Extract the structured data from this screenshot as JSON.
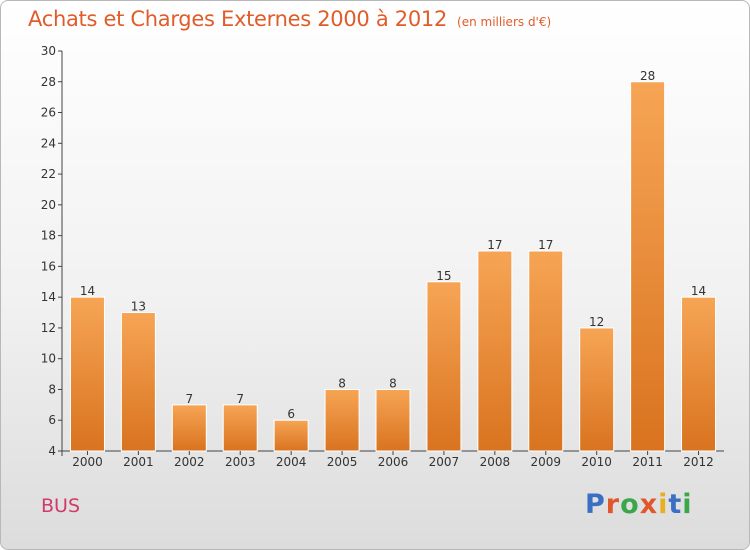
{
  "header": {
    "title": "Achats et Charges Externes 2000 à 2012",
    "subtitle": "(en milliers d'€)"
  },
  "footer": {
    "commune": "BUS",
    "logo": "Proxiti",
    "logo_colors": [
      "#3a6fc4",
      "#e0572b",
      "#3aa84a",
      "#e0572b",
      "#e8b020",
      "#3a6fc4",
      "#3aa84a"
    ]
  },
  "colors": {
    "bar_top": "#f6a555",
    "bar_bottom": "#d9731f",
    "title": "#e05c2a",
    "commune": "#d13a6a"
  },
  "chart_data": {
    "type": "bar",
    "title": "Achats et Charges Externes 2000 à 2012",
    "subtitle": "(en milliers d'€)",
    "categories": [
      "2000",
      "2001",
      "2002",
      "2003",
      "2004",
      "2005",
      "2006",
      "2007",
      "2008",
      "2009",
      "2010",
      "2011",
      "2012"
    ],
    "values": [
      14,
      13,
      7,
      7,
      6,
      8,
      8,
      15,
      17,
      17,
      12,
      28,
      14
    ],
    "ylim": [
      4,
      30
    ],
    "yticks": [
      4,
      6,
      8,
      10,
      12,
      14,
      16,
      18,
      20,
      22,
      24,
      26,
      28,
      30
    ],
    "grid": false,
    "legend": "none"
  }
}
